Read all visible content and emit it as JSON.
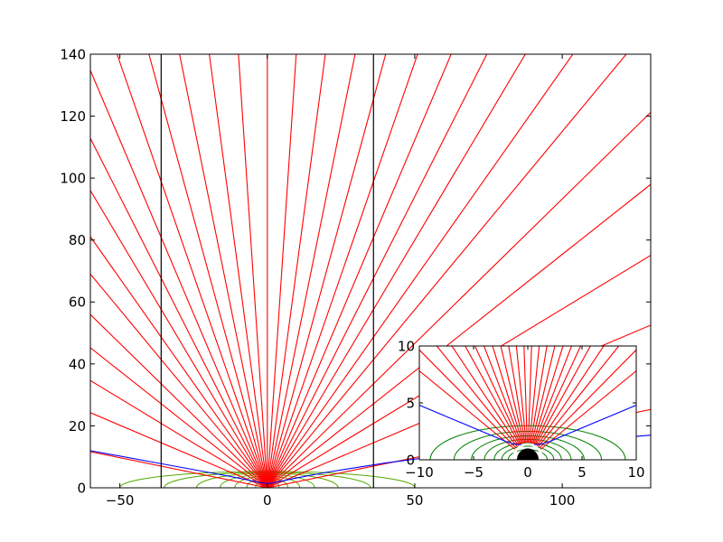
{
  "chart_data": [
    {
      "type": "line",
      "title": "",
      "xlabel": "",
      "ylabel": "",
      "xlim": [
        -60,
        130
      ],
      "ylim": [
        0,
        140
      ],
      "x_ticks": [
        -50,
        0,
        50,
        100
      ],
      "y_ticks": [
        0,
        20,
        40,
        60,
        80,
        100,
        120,
        140
      ],
      "x_tick_labels": [
        "−50",
        "0",
        "50",
        "100"
      ],
      "y_tick_labels": [
        "0",
        "20",
        "40",
        "60",
        "80",
        "100",
        "120",
        "140"
      ],
      "grid": false,
      "legend": "none",
      "colors": {
        "field": "#ff0000",
        "boundary": "#0000ff",
        "equipotential": "#55aa00",
        "vline": "#000000"
      },
      "vertical_lines_x": [
        -36,
        36
      ],
      "radial_field_lines": {
        "origin": [
          0,
          0
        ],
        "angles_deg": [
          11,
          22,
          30,
          37,
          43,
          49,
          53.5,
          58,
          62,
          66,
          70,
          74,
          78,
          82,
          86,
          90,
          94,
          98,
          102,
          106,
          110,
          114,
          118,
          122,
          126.5,
          131,
          137,
          143,
          150,
          158,
          169
        ]
      },
      "boundary_curve": {
        "x": [
          -60,
          -40,
          -20,
          -10,
          -5,
          -2,
          0,
          2,
          5,
          10,
          20,
          40,
          60,
          80,
          100,
          130
        ],
        "y": [
          12,
          8.5,
          5,
          3.2,
          2.2,
          1.6,
          1.4,
          1.6,
          2.2,
          3.2,
          5,
          8,
          10.5,
          12.5,
          14.5,
          17
        ]
      },
      "equipotential_loops": {
        "center_x": 0,
        "half_widths": [
          2,
          4,
          7,
          11,
          16,
          24,
          35,
          50
        ],
        "heights": [
          1.5,
          2.5,
          3.2,
          3.8,
          4.3,
          4.7,
          5.0,
          5.3
        ]
      }
    },
    {
      "type": "line",
      "title": "",
      "xlabel": "",
      "ylabel": "",
      "xlim": [
        -10,
        10
      ],
      "ylim": [
        0,
        10
      ],
      "x_ticks": [
        -10,
        -5,
        0,
        5,
        10
      ],
      "y_ticks": [
        0,
        5,
        10
      ],
      "x_tick_labels": [
        "−10",
        "−5",
        "0",
        "5",
        "10"
      ],
      "y_tick_labels": [
        "0",
        "5",
        "10"
      ],
      "grid": false,
      "legend": "none",
      "colors": {
        "field": "#ff0000",
        "boundary": "#0000ff",
        "equipotential": "#008000",
        "disk": "#000000",
        "ring": "#ffffff"
      },
      "disk": {
        "center": [
          0,
          0
        ],
        "radius": 1
      },
      "ring": {
        "center": [
          0,
          0
        ],
        "radius": 1.35
      },
      "radial_field_lines": {
        "origin": [
          0,
          0
        ],
        "angles_deg": [
          38,
          44,
          50,
          55,
          60,
          64,
          68,
          72,
          76,
          80,
          84,
          88,
          92,
          96,
          100,
          104,
          108,
          112,
          116,
          120,
          125,
          130,
          136,
          142
        ],
        "inner_radius": 1.5
      },
      "boundary_curve": {
        "x": [
          -10,
          -8,
          -6,
          -4,
          -3,
          -2,
          -1.5,
          -1,
          0,
          1,
          1.5,
          2,
          3,
          4,
          6,
          8,
          10
        ],
        "y": [
          4.8,
          4.0,
          3.2,
          2.4,
          2.0,
          1.6,
          1.45,
          1.35,
          1.3,
          1.35,
          1.45,
          1.6,
          2.0,
          2.4,
          3.2,
          4.0,
          4.8
        ]
      },
      "equipotential_loops": {
        "center_x": 0,
        "half_widths": [
          1.8,
          2.4,
          3.1,
          4.0,
          5.2,
          6.8,
          9.0
        ],
        "heights": [
          0.9,
          1.2,
          1.5,
          1.8,
          2.1,
          2.5,
          3.0
        ]
      }
    }
  ]
}
